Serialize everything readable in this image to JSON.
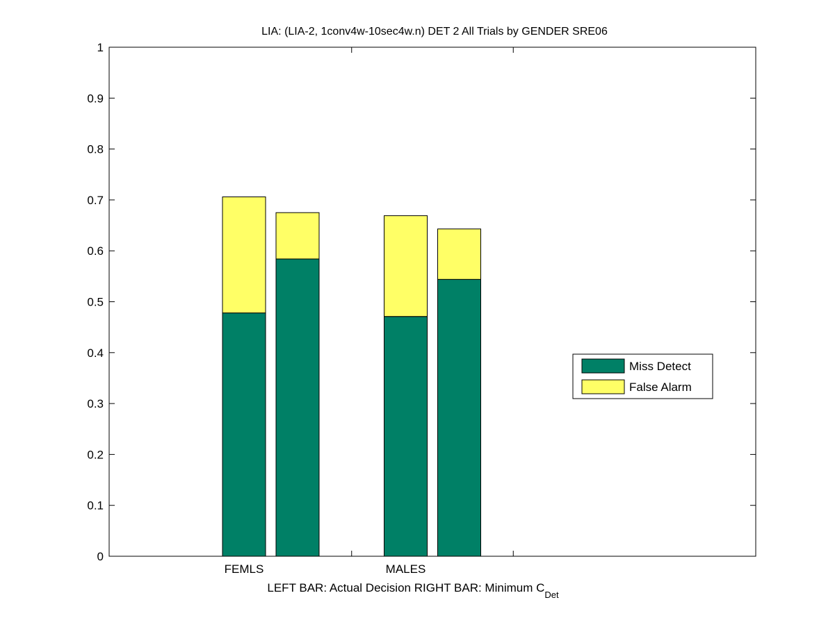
{
  "chart_data": {
    "type": "bar",
    "stacked": true,
    "title": "LIA: (LIA-2, 1conv4w-10sec4w.n) DET 2 All Trials by GENDER SRE06",
    "xlabel_parts": {
      "main": "LEFT BAR: Actual Decision     RIGHT BAR: Minimum C",
      "subscript": "Det"
    },
    "categories": [
      "FEMLS",
      "MALES"
    ],
    "bar_roles": [
      "Actual Decision",
      "Minimum C_Det"
    ],
    "series": [
      {
        "name": "Miss Detect",
        "color": "#008066",
        "values": [
          [
            0.478,
            0.584
          ],
          [
            0.471,
            0.544
          ]
        ]
      },
      {
        "name": "False Alarm",
        "color": "#ffff66",
        "values": [
          [
            0.228,
            0.091
          ],
          [
            0.198,
            0.099
          ]
        ]
      }
    ],
    "ylim": [
      0,
      1
    ],
    "yticks": [
      "0",
      "0.1",
      "0.2",
      "0.3",
      "0.4",
      "0.5",
      "0.6",
      "0.7",
      "0.8",
      "0.9",
      "1"
    ],
    "grid": false,
    "legend": "right"
  }
}
